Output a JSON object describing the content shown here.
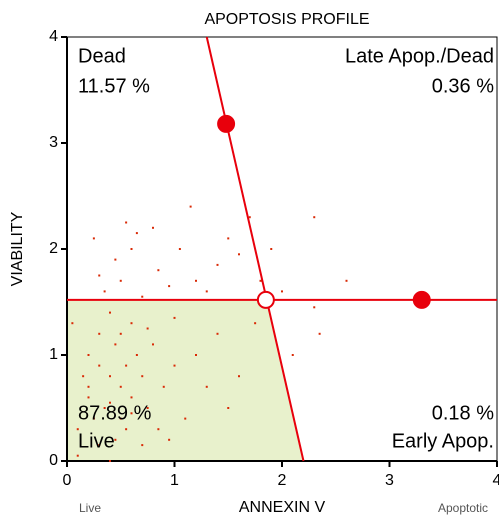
{
  "chart_data": {
    "type": "scatter",
    "title": "APOPTOSIS PROFILE",
    "x_label": "ANNEXIN V",
    "y_label": "VIABILITY",
    "x_low_note": "Live",
    "x_high_note": "Apoptotic",
    "xlim": [
      0,
      4
    ],
    "ylim": [
      0,
      4
    ],
    "xticks": [
      0,
      1,
      2,
      3,
      4
    ],
    "yticks": [
      0,
      1,
      2,
      3,
      4
    ],
    "color": "#d92a06",
    "gate_color": "#e8000c",
    "live_fill": "#e8f1cc",
    "x": [
      0.1,
      0.2,
      0.3,
      0.35,
      0.4,
      0.45,
      0.5,
      0.55,
      0.6,
      0.65,
      0.7,
      0.5,
      0.3,
      0.4,
      0.6,
      0.8,
      0.9,
      0.2,
      0.15,
      0.25,
      0.45,
      0.55,
      0.75,
      1.0,
      1.1,
      0.35,
      0.5,
      0.7,
      0.85,
      0.95,
      0.6,
      0.8,
      1.05,
      1.2,
      1.3,
      1.5,
      1.4,
      0.45,
      0.3,
      0.65,
      1.15,
      1.7,
      1.6,
      1.8,
      2.0,
      2.3,
      2.35,
      1.6,
      1.4,
      1.75,
      1.5,
      1.2,
      0.05,
      0.1,
      0.4,
      0.7,
      0.85,
      1.3,
      2.1,
      2.6,
      2.3,
      1.9,
      0.25,
      0.55,
      1.0,
      0.95,
      0.3,
      0.5,
      0.75,
      0.4,
      0.6,
      0.2
    ],
    "y": [
      0.3,
      0.6,
      0.9,
      0.5,
      0.8,
      1.1,
      0.7,
      0.9,
      0.6,
      1.0,
      0.8,
      0.4,
      1.2,
      1.4,
      1.3,
      1.1,
      0.7,
      1.0,
      0.8,
      0.4,
      0.2,
      0.3,
      0.5,
      0.9,
      0.4,
      1.6,
      1.7,
      1.55,
      1.8,
      1.65,
      2.0,
      2.2,
      2.0,
      1.7,
      1.6,
      2.1,
      1.85,
      1.9,
      1.75,
      2.15,
      2.4,
      2.3,
      1.95,
      1.7,
      1.6,
      1.45,
      1.2,
      0.8,
      1.2,
      1.3,
      0.5,
      1.0,
      1.3,
      0.05,
      0.0,
      0.15,
      0.3,
      0.7,
      1.0,
      1.7,
      2.3,
      2.0,
      2.1,
      2.25,
      1.35,
      0.2,
      0.15,
      1.2,
      1.25,
      0.55,
      0.45,
      0.7
    ],
    "gate": {
      "x": [
        1.3,
        2.2
      ],
      "y": [
        4,
        0
      ]
    },
    "threshold_y": 1.52,
    "handles": [
      {
        "x": 1.48,
        "y": 3.18,
        "filled": true
      },
      {
        "x": 1.85,
        "y": 1.52,
        "filled": false
      },
      {
        "x": 3.3,
        "y": 1.52,
        "filled": true
      }
    ],
    "quadrants": {
      "names": [
        "Dead",
        "Late Apop./Dead",
        "Live",
        "Early Apop."
      ],
      "values": [
        11.57,
        0.36,
        87.89,
        0.18
      ],
      "value_labels": [
        "11.57 %",
        "0.36 %",
        "87.89 %",
        "0.18 %"
      ]
    }
  }
}
